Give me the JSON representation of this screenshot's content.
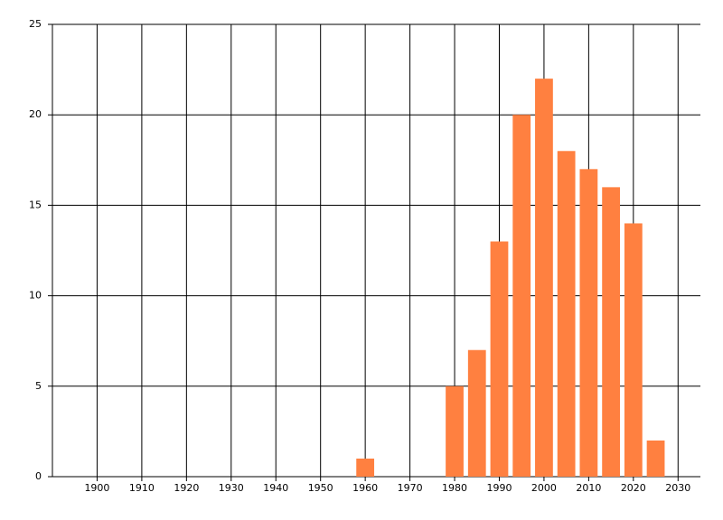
{
  "chart_data": {
    "type": "bar",
    "x": [
      1960,
      1980,
      1985,
      1990,
      1995,
      2000,
      2005,
      2010,
      2015,
      2020,
      2025
    ],
    "values": [
      1,
      5,
      7,
      13,
      20,
      22,
      18,
      17,
      16,
      14,
      2
    ],
    "color": "#ff8040",
    "xlim": [
      1890,
      2035
    ],
    "xticks": [
      1900,
      1910,
      1920,
      1930,
      1940,
      1950,
      1960,
      1970,
      1980,
      1990,
      2000,
      2010,
      2020,
      2030
    ],
    "ylim": [
      0,
      25
    ],
    "yticks": [
      0,
      5,
      10,
      15,
      20,
      25
    ],
    "grid": true
  }
}
